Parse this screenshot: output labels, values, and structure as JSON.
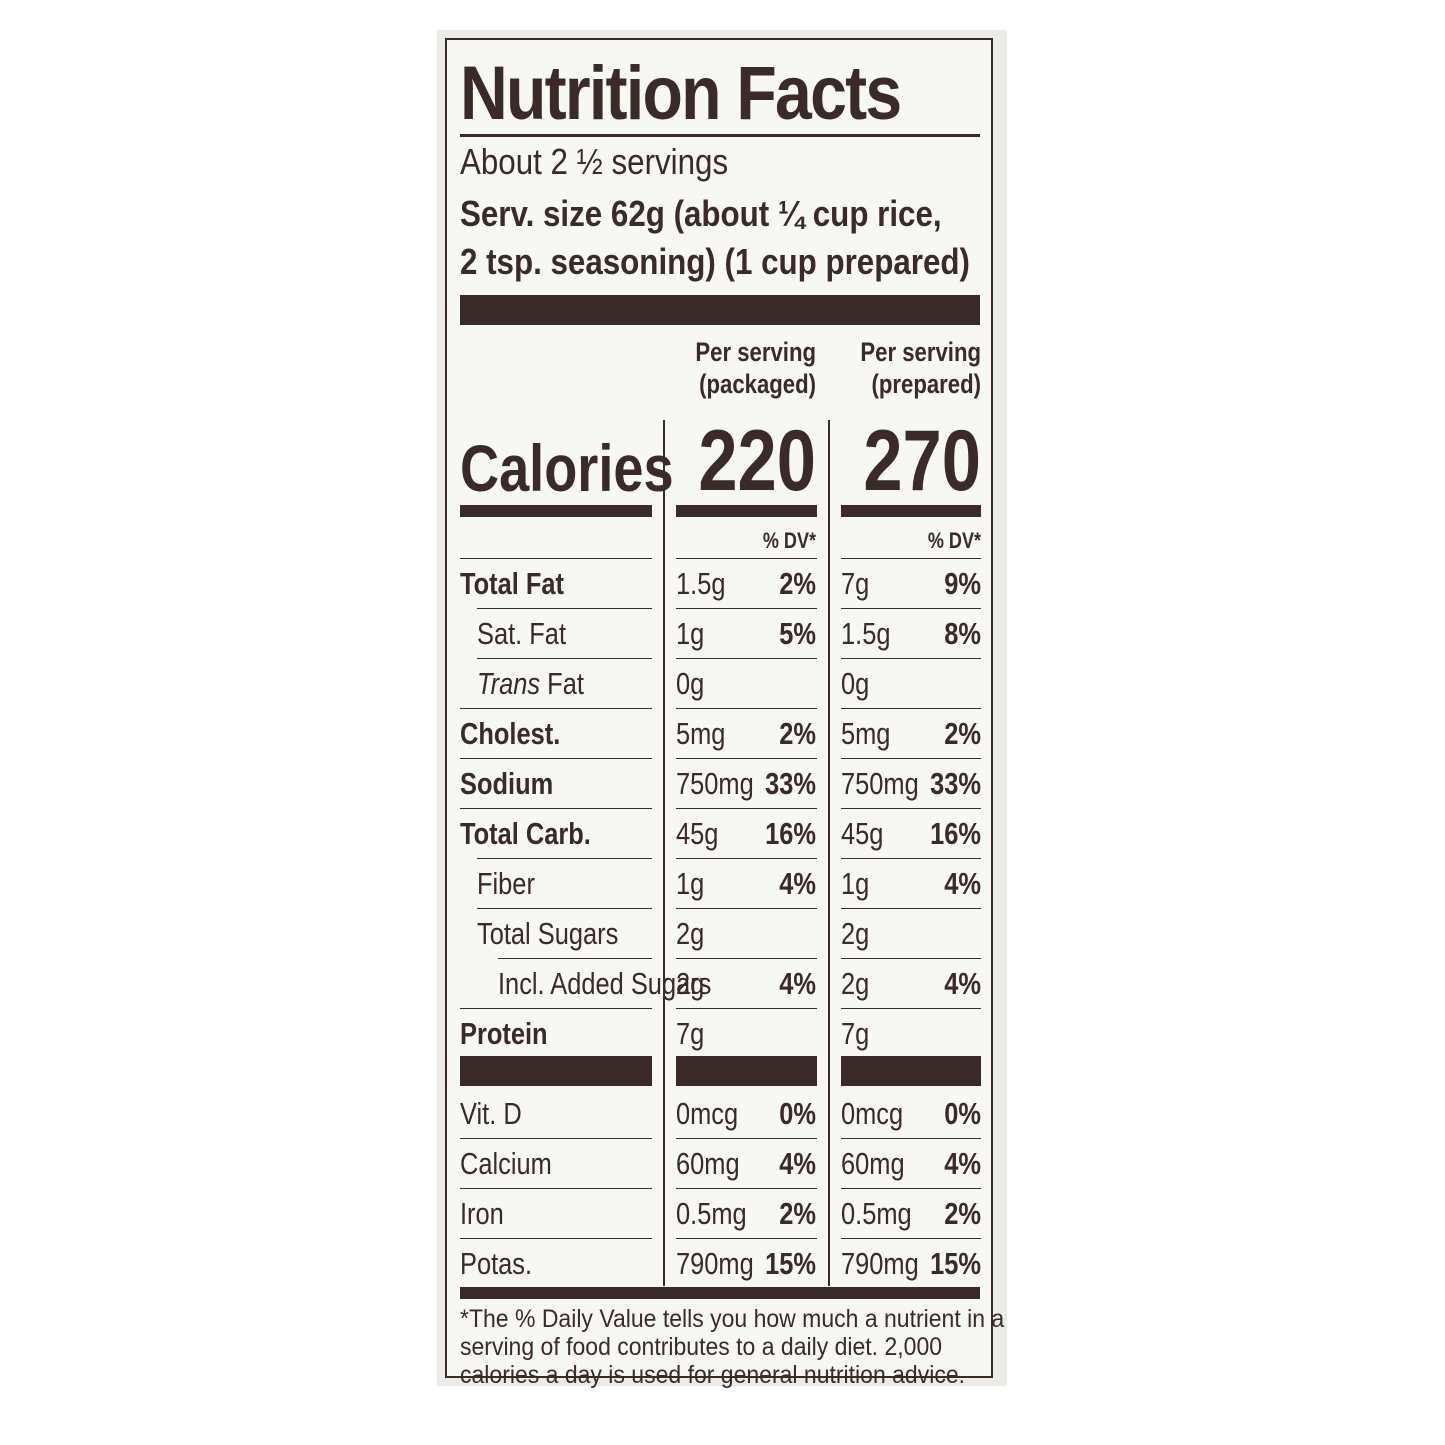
{
  "title": "Nutrition Facts",
  "servings": "About 2 ½ servings",
  "serving_size_line1": "Serv. size     62g (about ¼ cup rice,",
  "serving_size_line2": "2 tsp. seasoning) (1 cup prepared)",
  "columns": {
    "packaged": [
      "Per serving",
      "(packaged)"
    ],
    "prepared": [
      "Per serving",
      "(prepared)"
    ]
  },
  "calories": {
    "label": "Calories",
    "packaged": "220",
    "prepared": "270"
  },
  "dv_header": "% DV*",
  "rows": [
    {
      "label": "Total Fat",
      "style": "bold",
      "indent": 0,
      "pk_amt": "1.5g",
      "pk_dv": "2%",
      "pr_amt": "7g",
      "pr_dv": "9%"
    },
    {
      "label": "Sat. Fat",
      "style": "normal",
      "indent": 1,
      "pk_amt": "1g",
      "pk_dv": "5%",
      "pr_amt": "1.5g",
      "pr_dv": "8%"
    },
    {
      "label_italic": "Trans",
      "label": " Fat",
      "style": "trans",
      "indent": 1,
      "pk_amt": "0g",
      "pk_dv": "",
      "pr_amt": "0g",
      "pr_dv": ""
    },
    {
      "label": "Cholest.",
      "style": "bold",
      "indent": 0,
      "pk_amt": "5mg",
      "pk_dv": "2%",
      "pr_amt": "5mg",
      "pr_dv": "2%"
    },
    {
      "label": "Sodium",
      "style": "bold",
      "indent": 0,
      "pk_amt": "750mg",
      "pk_dv": "33%",
      "pr_amt": "750mg",
      "pr_dv": "33%"
    },
    {
      "label": "Total Carb.",
      "style": "bold",
      "indent": 0,
      "pk_amt": "45g",
      "pk_dv": "16%",
      "pr_amt": "45g",
      "pr_dv": "16%"
    },
    {
      "label": "Fiber",
      "style": "normal",
      "indent": 1,
      "pk_amt": "1g",
      "pk_dv": "4%",
      "pr_amt": "1g",
      "pr_dv": "4%"
    },
    {
      "label": "Total Sugars",
      "style": "normal",
      "indent": 1,
      "pk_amt": "2g",
      "pk_dv": "",
      "pr_amt": "2g",
      "pr_dv": ""
    },
    {
      "label": "Incl. Added Sugars",
      "style": "normal",
      "indent": 2,
      "pk_amt": "2g",
      "pk_dv": "4%",
      "pr_amt": "2g",
      "pr_dv": "4%"
    },
    {
      "label": "Protein",
      "style": "bold",
      "indent": 0,
      "pk_amt": "7g",
      "pk_dv": "",
      "pr_amt": "7g",
      "pr_dv": ""
    }
  ],
  "vitamins": [
    {
      "label": "Vit. D",
      "pk_amt": "0mcg",
      "pk_dv": "0%",
      "pr_amt": "0mcg",
      "pr_dv": "0%"
    },
    {
      "label": "Calcium",
      "pk_amt": "60mg",
      "pk_dv": "4%",
      "pr_amt": "60mg",
      "pr_dv": "4%"
    },
    {
      "label": "Iron",
      "pk_amt": "0.5mg",
      "pk_dv": "2%",
      "pr_amt": "0.5mg",
      "pr_dv": "2%"
    },
    {
      "label": "Potas.",
      "pk_amt": "790mg",
      "pk_dv": "15%",
      "pr_amt": "790mg",
      "pr_dv": "15%"
    }
  ],
  "footnote": [
    "*The % Daily Value tells you how much a nutrient in a",
    "serving of food contributes to a daily diet. 2,000",
    "calories a day is used for general nutrition advice."
  ]
}
